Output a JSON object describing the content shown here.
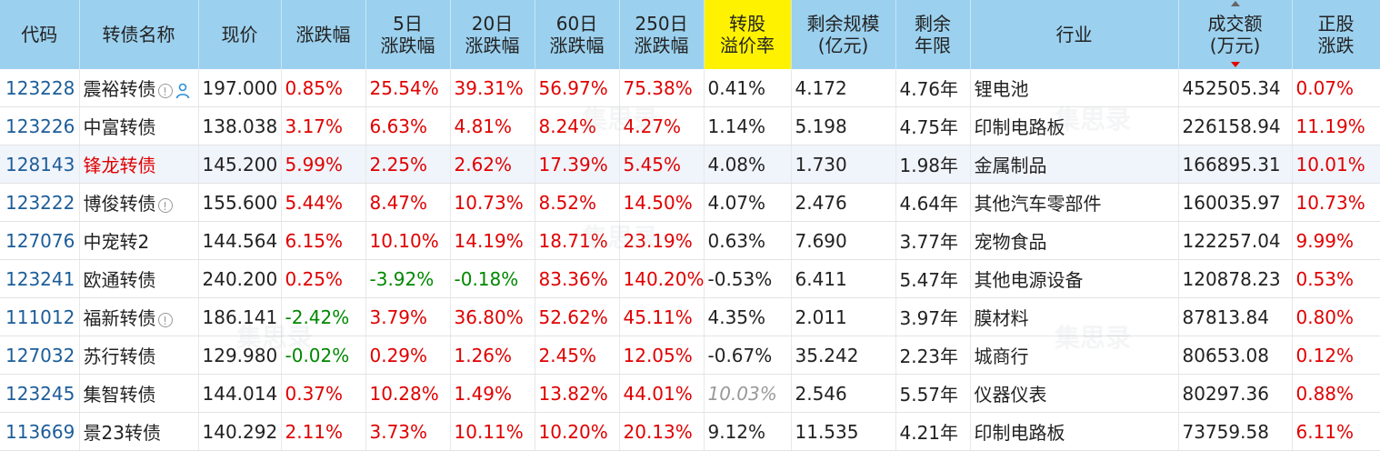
{
  "headers": [
    "代码",
    "转债名称",
    "现价",
    "涨跌幅",
    "5日\n涨跌幅",
    "20日\n涨跌幅",
    "60日\n涨跌幅",
    "250日\n涨跌幅",
    "转股\n溢价率",
    "剩余规模\n(亿元)",
    "剩余\n年限",
    "行业",
    "成交额\n(万元)",
    "正股\n涨跌"
  ],
  "watermark": "集思录",
  "rows": [
    {
      "code": "123228",
      "name": "震裕转债",
      "price": "197.000",
      "chg": "0.85%",
      "chg5": "25.54%",
      "chg20": "39.31%",
      "chg60": "56.97%",
      "chg250": "75.38%",
      "premium": "0.41%",
      "scale": "4.172",
      "years": "4.76年",
      "industry": "锂电池",
      "volume": "452505.34",
      "stock_chg": "0.07%"
    },
    {
      "code": "123226",
      "name": "中富转债",
      "price": "138.038",
      "chg": "3.17%",
      "chg5": "6.63%",
      "chg20": "4.81%",
      "chg60": "8.24%",
      "chg250": "4.27%",
      "premium": "1.14%",
      "scale": "5.198",
      "years": "4.75年",
      "industry": "印制电路板",
      "volume": "226158.94",
      "stock_chg": "11.19%"
    },
    {
      "code": "128143",
      "name": "锋龙转债",
      "price": "145.200",
      "chg": "5.99%",
      "chg5": "2.25%",
      "chg20": "2.62%",
      "chg60": "17.39%",
      "chg250": "5.45%",
      "premium": "4.08%",
      "scale": "1.730",
      "years": "1.98年",
      "industry": "金属制品",
      "volume": "166895.31",
      "stock_chg": "10.01%"
    },
    {
      "code": "123222",
      "name": "博俊转债",
      "price": "155.600",
      "chg": "5.44%",
      "chg5": "8.47%",
      "chg20": "10.73%",
      "chg60": "8.52%",
      "chg250": "14.50%",
      "premium": "4.07%",
      "scale": "2.476",
      "years": "4.64年",
      "industry": "其他汽车零部件",
      "volume": "160035.97",
      "stock_chg": "10.73%"
    },
    {
      "code": "127076",
      "name": "中宠转2",
      "price": "144.564",
      "chg": "6.15%",
      "chg5": "10.10%",
      "chg20": "14.19%",
      "chg60": "18.71%",
      "chg250": "23.19%",
      "premium": "0.63%",
      "scale": "7.690",
      "years": "3.77年",
      "industry": "宠物食品",
      "volume": "122257.04",
      "stock_chg": "9.99%"
    },
    {
      "code": "123241",
      "name": "欧通转债",
      "price": "240.200",
      "chg": "0.25%",
      "chg5": "-3.92%",
      "chg20": "-0.18%",
      "chg60": "83.36%",
      "chg250": "140.20%",
      "premium": "-0.53%",
      "scale": "6.411",
      "years": "5.47年",
      "industry": "其他电源设备",
      "volume": "120878.23",
      "stock_chg": "0.53%"
    },
    {
      "code": "111012",
      "name": "福新转债",
      "price": "186.141",
      "chg": "-2.42%",
      "chg5": "3.79%",
      "chg20": "36.80%",
      "chg60": "52.62%",
      "chg250": "45.11%",
      "premium": "4.35%",
      "scale": "2.011",
      "years": "3.97年",
      "industry": "膜材料",
      "volume": "87813.84",
      "stock_chg": "0.80%"
    },
    {
      "code": "127032",
      "name": "苏行转债",
      "price": "129.980",
      "chg": "-0.02%",
      "chg5": "0.29%",
      "chg20": "1.26%",
      "chg60": "2.45%",
      "chg250": "12.05%",
      "premium": "-0.67%",
      "scale": "35.242",
      "years": "2.23年",
      "industry": "城商行",
      "volume": "80653.08",
      "stock_chg": "0.12%"
    },
    {
      "code": "123245",
      "name": "集智转债",
      "price": "144.014",
      "chg": "0.37%",
      "chg5": "10.28%",
      "chg20": "1.49%",
      "chg60": "13.82%",
      "chg250": "44.01%",
      "premium": "10.03%",
      "scale": "2.546",
      "years": "5.57年",
      "industry": "仪器仪表",
      "volume": "80297.36",
      "stock_chg": "0.88%"
    },
    {
      "code": "113669",
      "name": "景23转债",
      "price": "140.292",
      "chg": "2.11%",
      "chg5": "3.73%",
      "chg20": "10.11%",
      "chg60": "10.20%",
      "chg250": "20.13%",
      "premium": "9.12%",
      "scale": "11.535",
      "years": "4.21年",
      "industry": "印制电路板",
      "volume": "73759.58",
      "stock_chg": "6.11%"
    }
  ]
}
